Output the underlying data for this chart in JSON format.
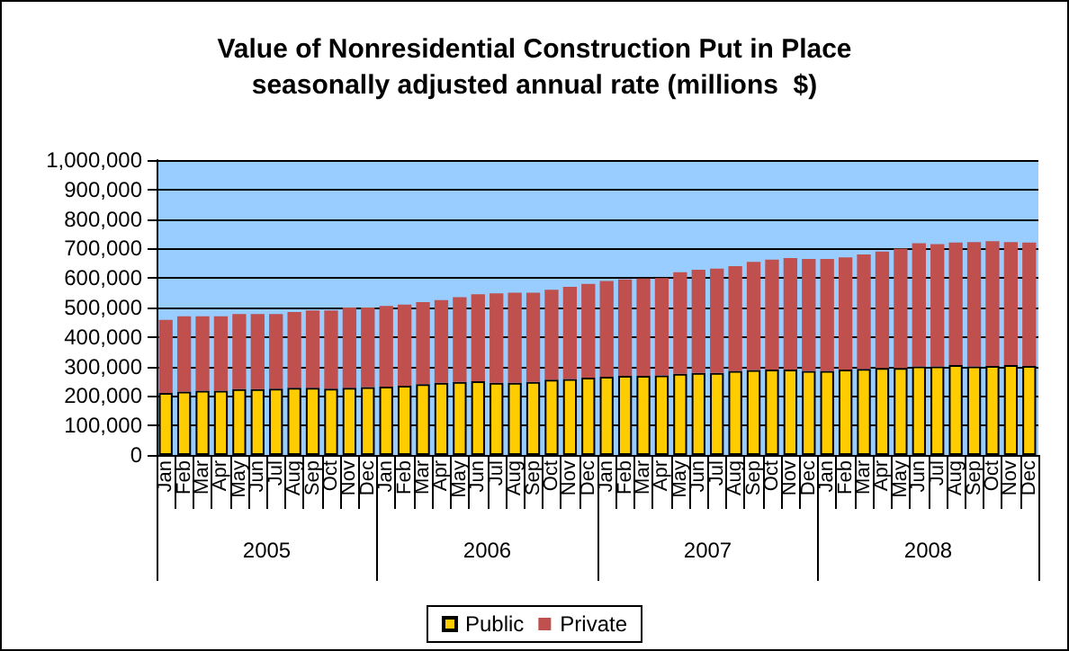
{
  "chart_data": {
    "type": "bar",
    "title": "Value of Nonresidential Construction Put in Place",
    "subtitle": "seasonally adjusted annual rate (millions  $)",
    "categories": [
      "Jan",
      "Feb",
      "Mar",
      "Apr",
      "May",
      "Jun",
      "Jul",
      "Aug",
      "Sep",
      "Oct",
      "Nov",
      "Dec",
      "Jan",
      "Feb",
      "Mar",
      "Apr",
      "May",
      "Jun",
      "Jul",
      "Aug",
      "Sep",
      "Oct",
      "Nov",
      "Dec",
      "Jan",
      "Feb",
      "Mar",
      "Apr",
      "May",
      "Jun",
      "Jul",
      "Aug",
      "Sep",
      "Oct",
      "Nov",
      "Dec",
      "Jan",
      "Feb",
      "Mar",
      "Apr",
      "May",
      "Jun",
      "Jul",
      "Aug",
      "Sep",
      "Oct",
      "Nov",
      "Dec"
    ],
    "annotations": [
      "2005",
      "2006",
      "2007",
      "2008"
    ],
    "stacked": true,
    "series": [
      {
        "name": "Public",
        "color": "#ffcc00",
        "values": [
          210000,
          215000,
          218000,
          218000,
          223000,
          223000,
          225000,
          228000,
          228000,
          225000,
          228000,
          230000,
          232000,
          235000,
          240000,
          245000,
          248000,
          250000,
          245000,
          245000,
          248000,
          255000,
          258000,
          262000,
          265000,
          268000,
          268000,
          270000,
          275000,
          278000,
          278000,
          285000,
          288000,
          290000,
          290000,
          285000,
          285000,
          290000,
          292000,
          295000,
          295000,
          300000,
          300000,
          305000,
          300000,
          302000,
          305000,
          302000
        ]
      },
      {
        "name": "Private",
        "color": "#c0504d",
        "values": [
          248000,
          255000,
          252000,
          252000,
          255000,
          255000,
          253000,
          257000,
          262000,
          265000,
          272000,
          270000,
          273000,
          275000,
          278000,
          280000,
          287000,
          295000,
          303000,
          305000,
          302000,
          305000,
          312000,
          318000,
          325000,
          327000,
          330000,
          330000,
          345000,
          350000,
          354000,
          355000,
          367000,
          372000,
          378000,
          380000,
          380000,
          380000,
          388000,
          395000,
          405000,
          418000,
          415000,
          415000,
          422000,
          423000,
          417000,
          418000
        ]
      }
    ],
    "ylim": [
      0,
      1000000
    ],
    "yticks": [
      {
        "value": 0,
        "label": "0"
      },
      {
        "value": 100000,
        "label": "100,000"
      },
      {
        "value": 200000,
        "label": "200,000"
      },
      {
        "value": 300000,
        "label": "300,000"
      },
      {
        "value": 400000,
        "label": "400,000"
      },
      {
        "value": 500000,
        "label": "500,000"
      },
      {
        "value": 600000,
        "label": "600,000"
      },
      {
        "value": 700000,
        "label": "700,000"
      },
      {
        "value": 800000,
        "label": "800,000"
      },
      {
        "value": 900000,
        "label": "900,000"
      },
      {
        "value": 1000000,
        "label": "1,000,000"
      }
    ],
    "grid": "y",
    "legend": "bottom"
  }
}
